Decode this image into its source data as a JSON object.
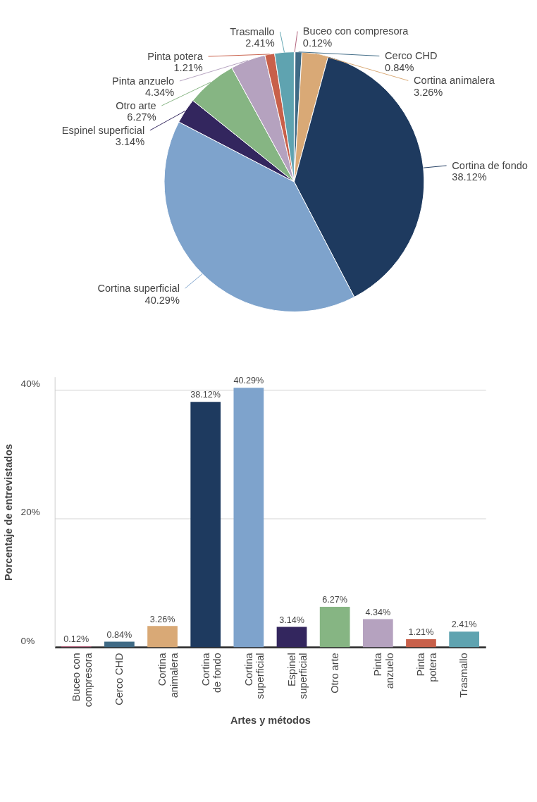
{
  "chart_data": [
    {
      "type": "pie",
      "categories": [
        "Buceo con compresora",
        "Cerco CHD",
        "Cortina animalera",
        "Cortina de fondo",
        "Cortina superficial",
        "Espinel superficial",
        "Otro arte",
        "Pinta anzuelo",
        "Pinta potera",
        "Trasmallo"
      ],
      "values": [
        0.12,
        0.84,
        3.26,
        38.12,
        40.29,
        3.14,
        6.27,
        4.34,
        1.21,
        2.41
      ],
      "value_labels": [
        "0.12%",
        "0.84%",
        "3.26%",
        "38.12%",
        "40.29%",
        "3.14%",
        "6.27%",
        "4.34%",
        "1.21%",
        "2.41%"
      ],
      "colors": [
        "#b0607a",
        "#3f6a85",
        "#d9a976",
        "#1e3a5f",
        "#7ea3cc",
        "#33265e",
        "#86b583",
        "#b5a2bf",
        "#c8604a",
        "#5fa3b0"
      ]
    },
    {
      "type": "bar",
      "xlabel": "Artes y métodos",
      "ylabel": "Porcentaje de entrevistados",
      "categories": [
        "Buceo con compresora",
        "Cerco CHD",
        "Cortina animalera",
        "Cortina de fondo",
        "Cortina superficial",
        "Espinel superficial",
        "Otro arte",
        "Pinta anzuelo",
        "Pinta potera",
        "Trasmallo"
      ],
      "values": [
        0.12,
        0.84,
        3.26,
        38.12,
        40.29,
        3.14,
        6.27,
        4.34,
        1.21,
        2.41
      ],
      "value_labels": [
        "0.12%",
        "0.84%",
        "3.26%",
        "38.12%",
        "40.29%",
        "3.14%",
        "6.27%",
        "4.34%",
        "1.21%",
        "2.41%"
      ],
      "colors": [
        "#b0607a",
        "#3f6a85",
        "#d9a976",
        "#1e3a5f",
        "#7ea3cc",
        "#33265e",
        "#86b583",
        "#b5a2bf",
        "#c8604a",
        "#5fa3b0"
      ],
      "ylim": [
        0,
        42
      ],
      "yticks": [
        {
          "value": 0,
          "label": "0%"
        },
        {
          "value": 20,
          "label": "20%"
        },
        {
          "value": 40,
          "label": "40%"
        }
      ],
      "grid": "y"
    }
  ]
}
